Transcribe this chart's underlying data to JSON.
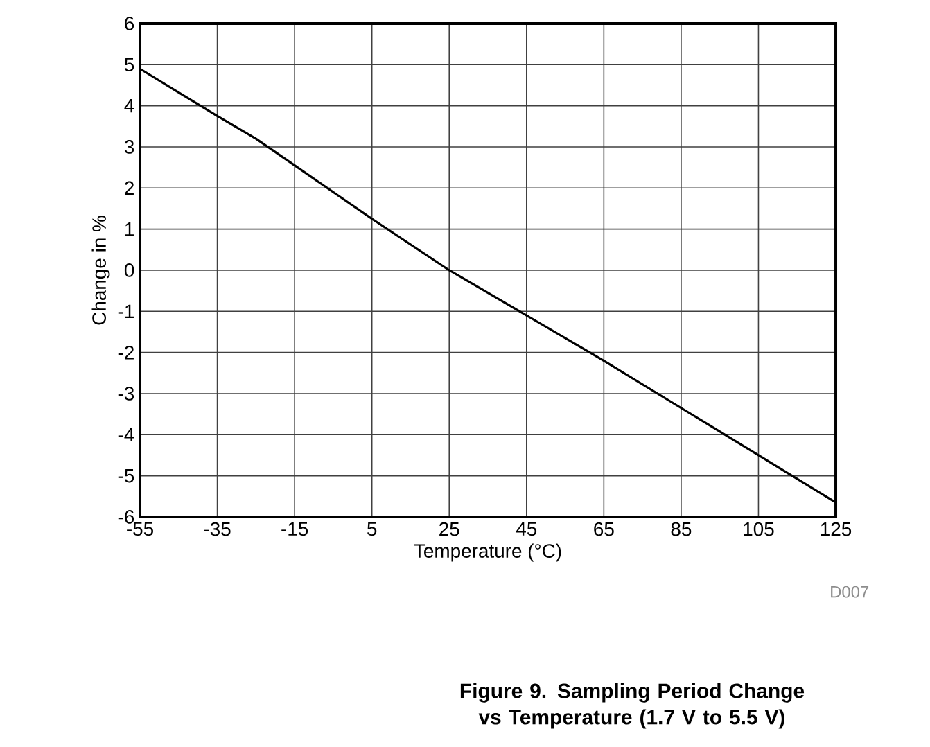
{
  "chart_data": {
    "type": "line",
    "xlabel": "Temperature (°C)",
    "ylabel": "Change in %",
    "annotations": [
      "D007",
      "Figure 9. Sampling Period Change vs Temperature (1.7 V to 5.5 V)"
    ],
    "x": [
      -55,
      -35,
      -25,
      -15,
      5,
      25,
      45,
      65,
      85,
      105,
      125
    ],
    "series": [
      {
        "color": "#000000",
        "values": [
          4.9,
          3.75,
          3.2,
          2.55,
          1.25,
          0,
          -1.1,
          -2.2,
          -3.35,
          -4.5,
          -5.65
        ]
      }
    ],
    "xlim": [
      -55,
      125
    ],
    "xticks": [
      -55,
      -35,
      -15,
      5,
      25,
      45,
      65,
      85,
      105,
      125
    ],
    "ylim": [
      -6,
      6
    ],
    "yticks": [
      -6,
      -5,
      -4,
      -3,
      -2,
      -1,
      0,
      1,
      2,
      3,
      4,
      5,
      6
    ],
    "grid": true,
    "marker": "none",
    "line_style": "solid"
  }
}
